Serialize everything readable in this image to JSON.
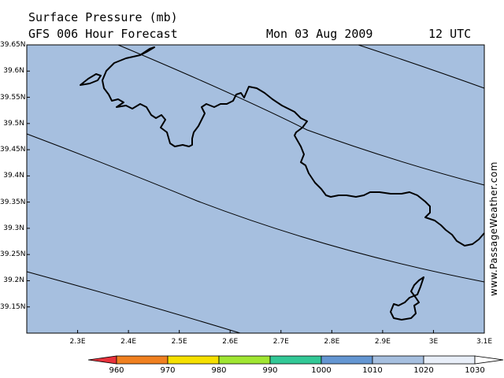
{
  "header": {
    "title": "Surface Pressure (mb)",
    "forecast": "GFS 006 Hour Forecast",
    "date": "Mon 03 Aug 2009",
    "time": "12 UTC"
  },
  "credit": "www.PassageWeather.com",
  "map": {
    "lon_range": [
      2.2,
      3.1
    ],
    "lat_range": [
      39.1,
      39.65
    ],
    "ocean_color": "#a6bfdf",
    "x_ticks": [
      {
        "value": 2.3,
        "label": "2.3E"
      },
      {
        "value": 2.4,
        "label": "2.4E"
      },
      {
        "value": 2.5,
        "label": "2.5E"
      },
      {
        "value": 2.6,
        "label": "2.6E"
      },
      {
        "value": 2.7,
        "label": "2.7E"
      },
      {
        "value": 2.8,
        "label": "2.8E"
      },
      {
        "value": 2.9,
        "label": "2.9E"
      },
      {
        "value": 3.0,
        "label": "3E"
      },
      {
        "value": 3.1,
        "label": "3.1E"
      }
    ],
    "y_ticks": [
      {
        "value": 39.65,
        "label": "39.65N"
      },
      {
        "value": 39.6,
        "label": "39.6N"
      },
      {
        "value": 39.55,
        "label": "39.55N"
      },
      {
        "value": 39.5,
        "label": "39.5N"
      },
      {
        "value": 39.45,
        "label": "39.45N"
      },
      {
        "value": 39.4,
        "label": "39.4N"
      },
      {
        "value": 39.35,
        "label": "39.35N"
      },
      {
        "value": 39.3,
        "label": "39.3N"
      },
      {
        "value": 39.25,
        "label": "39.25N"
      },
      {
        "value": 39.2,
        "label": "39.2N"
      },
      {
        "value": 39.15,
        "label": "39.15N"
      }
    ]
  },
  "legend": {
    "labels": [
      "960",
      "970",
      "980",
      "990",
      "1000",
      "1010",
      "1020",
      "1030"
    ],
    "colors": [
      "#e8323c",
      "#f08020",
      "#f5e000",
      "#a0e632",
      "#32c896",
      "#6496d2",
      "#a6bfdf",
      "#e8eef8",
      "#ffffff"
    ]
  }
}
